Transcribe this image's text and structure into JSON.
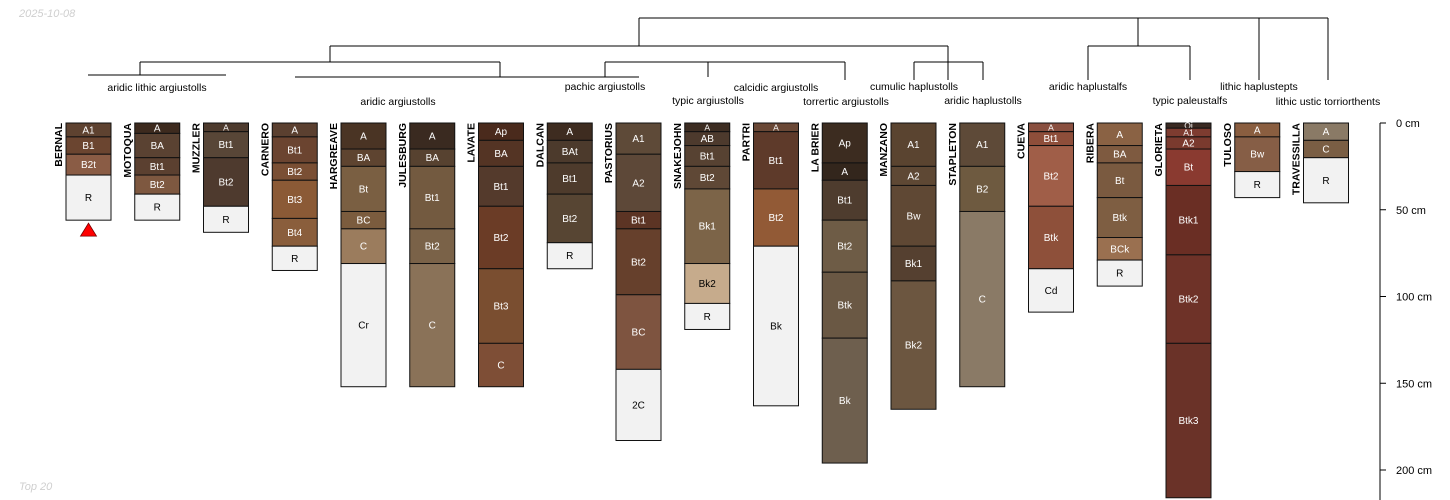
{
  "header": {
    "date": "2025-10-08"
  },
  "footer": {
    "caption": "Top 20"
  },
  "chart_data": {
    "type": "soil-profile-sketch",
    "depth_unit": "cm",
    "depth_axis": {
      "ticks": [
        0,
        50,
        100,
        150,
        200
      ],
      "labels": [
        "0 cm",
        "50 cm",
        "100 cm",
        "150 cm",
        "200 cm"
      ]
    },
    "groups": [
      {
        "label": "aridic lithic argiustolls"
      },
      {
        "label": "aridic argiustolls"
      },
      {
        "label": "pachic argiustolls"
      },
      {
        "label": "typic argiustolls"
      },
      {
        "label": "calcidic argiustolls"
      },
      {
        "label": "torrertic argiustolls"
      },
      {
        "label": "cumulic haplustolls"
      },
      {
        "label": "aridic haplustolls"
      },
      {
        "label": "aridic haplustalfs"
      },
      {
        "label": "typic paleustalfs"
      },
      {
        "label": "lithic haplustepts"
      },
      {
        "label": "lithic ustic torriorthents"
      }
    ],
    "profiles": [
      {
        "name": "BERNAL",
        "marker": true,
        "horizons": [
          {
            "name": "A1",
            "top": 0,
            "bottom": 8,
            "color": "#5e4230"
          },
          {
            "name": "B1",
            "top": 8,
            "bottom": 18,
            "color": "#6b4530"
          },
          {
            "name": "B2t",
            "top": 18,
            "bottom": 30,
            "color": "#8a5c45"
          },
          {
            "name": "R",
            "top": 30,
            "bottom": 56,
            "color": "#f2f2f2"
          }
        ]
      },
      {
        "name": "MOTOQUA",
        "horizons": [
          {
            "name": "A",
            "top": 0,
            "bottom": 6,
            "color": "#3d2a1e"
          },
          {
            "name": "BA",
            "top": 6,
            "bottom": 20,
            "color": "#5a4232"
          },
          {
            "name": "Bt1",
            "top": 20,
            "bottom": 30,
            "color": "#5b4030"
          },
          {
            "name": "Bt2",
            "top": 30,
            "bottom": 41,
            "color": "#7e5840"
          },
          {
            "name": "R",
            "top": 41,
            "bottom": 56,
            "color": "#f2f2f2"
          }
        ]
      },
      {
        "name": "MUZZLER",
        "horizons": [
          {
            "name": "A",
            "top": 0,
            "bottom": 5,
            "color": "#4e3b2e"
          },
          {
            "name": "Bt1",
            "top": 5,
            "bottom": 20,
            "color": "#584637"
          },
          {
            "name": "Bt2",
            "top": 20,
            "bottom": 48,
            "color": "#4e3a2e"
          },
          {
            "name": "R",
            "top": 48,
            "bottom": 63,
            "color": "#f2f2f2"
          }
        ]
      },
      {
        "name": "CARNERO",
        "horizons": [
          {
            "name": "A",
            "top": 0,
            "bottom": 8,
            "color": "#5b4030"
          },
          {
            "name": "Bt1",
            "top": 8,
            "bottom": 23,
            "color": "#6b4430"
          },
          {
            "name": "Bt2",
            "top": 23,
            "bottom": 33,
            "color": "#7a4f34"
          },
          {
            "name": "Bt3",
            "top": 33,
            "bottom": 55,
            "color": "#8b5a36"
          },
          {
            "name": "Bt4",
            "top": 55,
            "bottom": 71,
            "color": "#8a5e3c"
          },
          {
            "name": "R",
            "top": 71,
            "bottom": 85,
            "color": "#f2f2f2"
          }
        ]
      },
      {
        "name": "HARGREAVE",
        "horizons": [
          {
            "name": "A",
            "top": 0,
            "bottom": 15,
            "color": "#4a3424"
          },
          {
            "name": "BA",
            "top": 15,
            "bottom": 25,
            "color": "#5e4430"
          },
          {
            "name": "Bt",
            "top": 25,
            "bottom": 51,
            "color": "#7a5f42"
          },
          {
            "name": "BC",
            "top": 51,
            "bottom": 61,
            "color": "#7b5c3e"
          },
          {
            "name": "C",
            "top": 61,
            "bottom": 81,
            "color": "#9b7c5d"
          },
          {
            "name": "Cr",
            "top": 81,
            "bottom": 152,
            "color": "#f2f2f2"
          }
        ]
      },
      {
        "name": "JULESBURG",
        "horizons": [
          {
            "name": "A",
            "top": 0,
            "bottom": 15,
            "color": "#3a2a20"
          },
          {
            "name": "BA",
            "top": 15,
            "bottom": 25,
            "color": "#574230"
          },
          {
            "name": "Bt1",
            "top": 25,
            "bottom": 61,
            "color": "#735a40"
          },
          {
            "name": "Bt2",
            "top": 61,
            "bottom": 81,
            "color": "#7a6248"
          },
          {
            "name": "C",
            "top": 81,
            "bottom": 152,
            "color": "#8a7258"
          }
        ]
      },
      {
        "name": "LAVATE",
        "horizons": [
          {
            "name": "Ap",
            "top": 0,
            "bottom": 10,
            "color": "#4a2a1c"
          },
          {
            "name": "BA",
            "top": 10,
            "bottom": 25,
            "color": "#543424"
          },
          {
            "name": "Bt1",
            "top": 25,
            "bottom": 48,
            "color": "#543a2c"
          },
          {
            "name": "Bt2",
            "top": 48,
            "bottom": 84,
            "color": "#6b3c26"
          },
          {
            "name": "Bt3",
            "top": 84,
            "bottom": 127,
            "color": "#7a4e30"
          },
          {
            "name": "C",
            "top": 127,
            "bottom": 152,
            "color": "#7e4e36"
          }
        ]
      },
      {
        "name": "DALCAN",
        "horizons": [
          {
            "name": "A",
            "top": 0,
            "bottom": 10,
            "color": "#3e2c20"
          },
          {
            "name": "BAt",
            "top": 10,
            "bottom": 23,
            "color": "#4c3a2c"
          },
          {
            "name": "Bt1",
            "top": 23,
            "bottom": 41,
            "color": "#4e3b2c"
          },
          {
            "name": "Bt2",
            "top": 41,
            "bottom": 69,
            "color": "#574533"
          },
          {
            "name": "R",
            "top": 69,
            "bottom": 84,
            "color": "#f2f2f2"
          }
        ]
      },
      {
        "name": "PASTORIUS",
        "horizons": [
          {
            "name": "A1",
            "top": 0,
            "bottom": 18,
            "color": "#5e4a38"
          },
          {
            "name": "A2",
            "top": 18,
            "bottom": 51,
            "color": "#5d4838"
          },
          {
            "name": "Bt1",
            "top": 51,
            "bottom": 61,
            "color": "#5c3424"
          },
          {
            "name": "Bt2",
            "top": 61,
            "bottom": 99,
            "color": "#66402c"
          },
          {
            "name": "BC",
            "top": 99,
            "bottom": 142,
            "color": "#7e5440"
          },
          {
            "name": "2C",
            "top": 142,
            "bottom": 183,
            "color": "#f2f2f2"
          }
        ]
      },
      {
        "name": "SNAKEJOHN",
        "horizons": [
          {
            "name": "A",
            "top": 0,
            "bottom": 5,
            "color": "#3d2d22"
          },
          {
            "name": "AB",
            "top": 5,
            "bottom": 13,
            "color": "#4d3a2d"
          },
          {
            "name": "Bt1",
            "top": 13,
            "bottom": 25,
            "color": "#574232"
          },
          {
            "name": "Bt2",
            "top": 25,
            "bottom": 38,
            "color": "#5f4836"
          },
          {
            "name": "Bk1",
            "top": 38,
            "bottom": 81,
            "color": "#7c6448"
          },
          {
            "name": "Bk2",
            "top": 81,
            "bottom": 104,
            "color": "#c6ab8c"
          },
          {
            "name": "R",
            "top": 104,
            "bottom": 119,
            "color": "#f2f2f2"
          }
        ]
      },
      {
        "name": "PARTRI",
        "horizons": [
          {
            "name": "A",
            "top": 0,
            "bottom": 5,
            "color": "#6a4836"
          },
          {
            "name": "Bt1",
            "top": 5,
            "bottom": 38,
            "color": "#5e3a2a"
          },
          {
            "name": "Bt2",
            "top": 38,
            "bottom": 71,
            "color": "#925a36"
          },
          {
            "name": "Bk",
            "top": 71,
            "bottom": 163,
            "color": "#f2f2f2"
          }
        ]
      },
      {
        "name": "LA BRIER",
        "horizons": [
          {
            "name": "Ap",
            "top": 0,
            "bottom": 23,
            "color": "#3c2c20"
          },
          {
            "name": "A",
            "top": 23,
            "bottom": 33,
            "color": "#33261c"
          },
          {
            "name": "Bt1",
            "top": 33,
            "bottom": 56,
            "color": "#4e3c2e"
          },
          {
            "name": "Bt2",
            "top": 56,
            "bottom": 86,
            "color": "#6e5c46"
          },
          {
            "name": "Btk",
            "top": 86,
            "bottom": 124,
            "color": "#6a5844"
          },
          {
            "name": "Bk",
            "top": 124,
            "bottom": 196,
            "color": "#6e5f4e"
          }
        ]
      },
      {
        "name": "MANZANO",
        "horizons": [
          {
            "name": "A1",
            "top": 0,
            "bottom": 25,
            "color": "#5a4430"
          },
          {
            "name": "A2",
            "top": 25,
            "bottom": 36,
            "color": "#5e4834"
          },
          {
            "name": "Bw",
            "top": 36,
            "bottom": 71,
            "color": "#5f4834"
          },
          {
            "name": "Bk1",
            "top": 71,
            "bottom": 91,
            "color": "#554030"
          },
          {
            "name": "Bk2",
            "top": 91,
            "bottom": 165,
            "color": "#6c5640"
          }
        ]
      },
      {
        "name": "STAPLETON",
        "horizons": [
          {
            "name": "A1",
            "top": 0,
            "bottom": 25,
            "color": "#5e4a38"
          },
          {
            "name": "B2",
            "top": 25,
            "bottom": 51,
            "color": "#6e5a40"
          },
          {
            "name": "C",
            "top": 51,
            "bottom": 152,
            "color": "#8a7a66"
          }
        ]
      },
      {
        "name": "CUEVA",
        "horizons": [
          {
            "name": "A",
            "top": 0,
            "bottom": 5,
            "color": "#8a5040"
          },
          {
            "name": "Bt1",
            "top": 5,
            "bottom": 13,
            "color": "#8e4e3a"
          },
          {
            "name": "Bt2",
            "top": 13,
            "bottom": 48,
            "color": "#a05e48"
          },
          {
            "name": "Btk",
            "top": 48,
            "bottom": 84,
            "color": "#8e503a"
          },
          {
            "name": "Cd",
            "top": 84,
            "bottom": 109,
            "color": "#f2f2f2"
          }
        ]
      },
      {
        "name": "RIBERA",
        "horizons": [
          {
            "name": "A",
            "top": 0,
            "bottom": 13,
            "color": "#8a6244"
          },
          {
            "name": "BA",
            "top": 13,
            "bottom": 23,
            "color": "#7e5a40"
          },
          {
            "name": "Bt",
            "top": 23,
            "bottom": 43,
            "color": "#7a5a40"
          },
          {
            "name": "Btk",
            "top": 43,
            "bottom": 66,
            "color": "#7e5e42"
          },
          {
            "name": "BCk",
            "top": 66,
            "bottom": 79,
            "color": "#9a7050"
          },
          {
            "name": "R",
            "top": 79,
            "bottom": 94,
            "color": "#f2f2f2"
          }
        ]
      },
      {
        "name": "GLORIETA",
        "horizons": [
          {
            "name": "Oi",
            "top": 0,
            "bottom": 3,
            "color": "#3a2a22"
          },
          {
            "name": "A1",
            "top": 3,
            "bottom": 8,
            "color": "#7e3c30"
          },
          {
            "name": "A2",
            "top": 8,
            "bottom": 15,
            "color": "#7a3a2e"
          },
          {
            "name": "Bt",
            "top": 15,
            "bottom": 36,
            "color": "#8a3a30"
          },
          {
            "name": "Btk1",
            "top": 36,
            "bottom": 76,
            "color": "#6a2e24"
          },
          {
            "name": "Btk2",
            "top": 76,
            "bottom": 127,
            "color": "#6e3228"
          },
          {
            "name": "Btk3",
            "top": 127,
            "bottom": 216,
            "color": "#6a3228"
          }
        ]
      },
      {
        "name": "TULOSO",
        "horizons": [
          {
            "name": "A",
            "top": 0,
            "bottom": 8,
            "color": "#8a5e40"
          },
          {
            "name": "Bw",
            "top": 8,
            "bottom": 28,
            "color": "#865e46"
          },
          {
            "name": "R",
            "top": 28,
            "bottom": 43,
            "color": "#f2f2f2"
          }
        ]
      },
      {
        "name": "TRAVESSILLA",
        "horizons": [
          {
            "name": "A",
            "top": 0,
            "bottom": 10,
            "color": "#8a7a66"
          },
          {
            "name": "C",
            "top": 10,
            "bottom": 20,
            "color": "#7a5e44"
          },
          {
            "name": "R",
            "top": 20,
            "bottom": 46,
            "color": "#f2f2f2"
          }
        ]
      }
    ]
  }
}
